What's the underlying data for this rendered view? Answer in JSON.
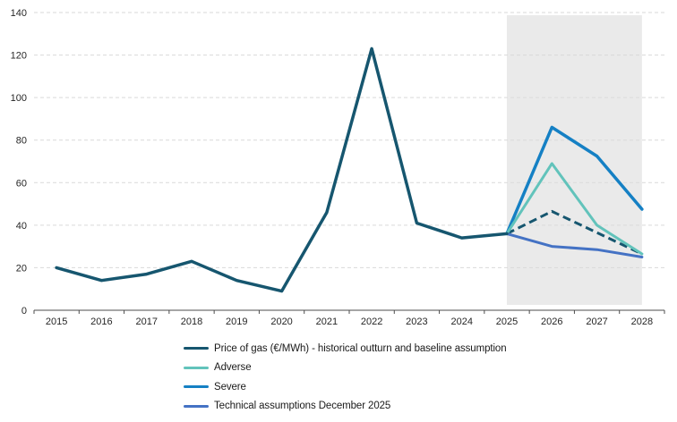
{
  "chart_data": {
    "type": "line",
    "x": [
      "2015",
      "2016",
      "2017",
      "2018",
      "2019",
      "2020",
      "2021",
      "2022",
      "2023",
      "2024",
      "2025",
      "2026",
      "2027",
      "2028"
    ],
    "y_ticks": [
      0,
      20,
      40,
      60,
      80,
      100,
      120,
      140
    ],
    "ylim": [
      0,
      140
    ],
    "grid": "horizontal-dashed",
    "legend_position": "bottom",
    "forecast_band": {
      "from": "2025",
      "to": "2028",
      "color": "#EAEAEA"
    },
    "colors": {
      "gridline": "#D9D9D9",
      "axis": "#4d4d4d",
      "tick_text": "#262626"
    },
    "series": [
      {
        "label": "Price of gas (€/MWh) - historical outturn and baseline assumption",
        "color": "#16566F",
        "segments": [
          {
            "name": "baseline-historical",
            "style": "solid",
            "width": 3.5,
            "z": 5,
            "points": [
              [
                "2015",
                20
              ],
              [
                "2016",
                14
              ],
              [
                "2017",
                17
              ],
              [
                "2018",
                23
              ],
              [
                "2019",
                14
              ],
              [
                "2020",
                9
              ],
              [
                "2021",
                46
              ],
              [
                "2022",
                123
              ],
              [
                "2023",
                41
              ],
              [
                "2024",
                34
              ],
              [
                "2025",
                36
              ]
            ]
          },
          {
            "name": "baseline-forecast",
            "style": "dashed",
            "width": 3,
            "z": 2,
            "points": [
              [
                "2025",
                36
              ],
              [
                "2026",
                46.5
              ],
              [
                "2027",
                36.5
              ],
              [
                "2028",
                26.5
              ]
            ]
          }
        ]
      },
      {
        "label": "Adverse",
        "color": "#62C3BB",
        "segments": [
          {
            "name": "adverse-scenario",
            "style": "solid",
            "width": 3,
            "z": 3,
            "points": [
              [
                "2025",
                36
              ],
              [
                "2026",
                69
              ],
              [
                "2027",
                40
              ],
              [
                "2028",
                26.5
              ]
            ]
          }
        ]
      },
      {
        "label": "Severe",
        "color": "#1580C4",
        "segments": [
          {
            "name": "severe-scenario",
            "style": "solid",
            "width": 3.5,
            "z": 1,
            "points": [
              [
                "2025",
                36
              ],
              [
                "2026",
                86
              ],
              [
                "2027",
                72.5
              ],
              [
                "2028",
                47.5
              ]
            ]
          }
        ]
      },
      {
        "label": "Technical assumptions December 2025",
        "color": "#4472C4",
        "segments": [
          {
            "name": "technical-assumptions",
            "style": "solid",
            "width": 3,
            "z": 4,
            "points": [
              [
                "2025",
                36
              ],
              [
                "2026",
                30
              ],
              [
                "2027",
                28.5
              ],
              [
                "2028",
                25
              ]
            ]
          }
        ]
      }
    ]
  }
}
